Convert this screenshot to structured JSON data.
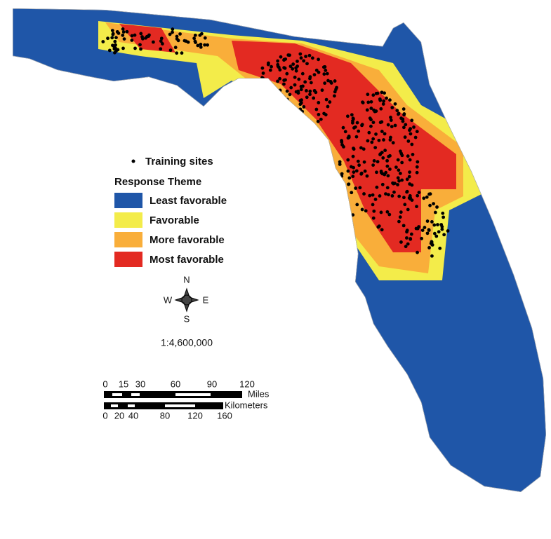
{
  "legend": {
    "training_sites": "Training sites",
    "title": "Response Theme",
    "items": [
      {
        "label": "Least favorable",
        "color": "#1f56a8"
      },
      {
        "label": "Favorable",
        "color": "#f3ec4a"
      },
      {
        "label": "More favorable",
        "color": "#f9ae3a"
      },
      {
        "label": "Most favorable",
        "color": "#e32a22"
      }
    ]
  },
  "compass": {
    "n": "N",
    "e": "E",
    "s": "S",
    "w": "W"
  },
  "scale": "1:4,600,000",
  "scale_bar": {
    "miles": {
      "unit": "Miles",
      "ticks": [
        0,
        15,
        30,
        60,
        90,
        120
      ]
    },
    "kilometers": {
      "unit": "Kilometers",
      "ticks": [
        0,
        20,
        40,
        80,
        120,
        160
      ]
    }
  }
}
